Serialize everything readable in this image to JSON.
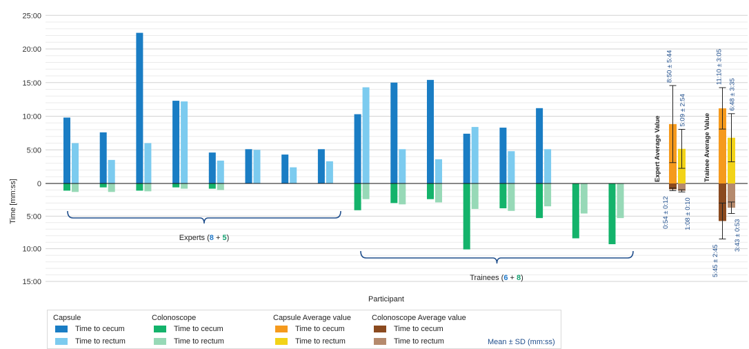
{
  "chart_data": {
    "type": "bar",
    "xlabel": "Participant",
    "ylabel": "Time [mm:ss]",
    "y_ticks_up": [
      "25:00",
      "20:00",
      "15:00",
      "10:00",
      "5:00",
      "0"
    ],
    "y_ticks_down": [
      "5:00",
      "10:00",
      "15:00"
    ],
    "ylim_minutes_up": [
      0,
      25
    ],
    "ylim_minutes_down": [
      0,
      15
    ],
    "units": "minutes",
    "orientation": "capsule times plotted upward from 0, colonoscope times plotted downward from 0",
    "grid": true,
    "participants": [
      {
        "group": "Experts",
        "capsule_cecum": 9.8,
        "capsule_rectum": 6.0,
        "colonoscope_cecum": 1.1,
        "colonoscope_rectum": 1.3
      },
      {
        "group": "Experts",
        "capsule_cecum": 7.6,
        "capsule_rectum": 3.5,
        "colonoscope_cecum": 0.6,
        "colonoscope_rectum": 1.3
      },
      {
        "group": "Experts",
        "capsule_cecum": 22.4,
        "capsule_rectum": 6.0,
        "colonoscope_cecum": 1.1,
        "colonoscope_rectum": 1.2
      },
      {
        "group": "Experts",
        "capsule_cecum": 12.3,
        "capsule_rectum": 12.2,
        "colonoscope_cecum": 0.6,
        "colonoscope_rectum": 0.8
      },
      {
        "group": "Experts",
        "capsule_cecum": 4.6,
        "capsule_rectum": 3.4,
        "colonoscope_cecum": 0.8,
        "colonoscope_rectum": 1.0
      },
      {
        "group": "Experts",
        "capsule_cecum": 5.1,
        "capsule_rectum": 5.0,
        "colonoscope_cecum": null,
        "colonoscope_rectum": null
      },
      {
        "group": "Experts",
        "capsule_cecum": 4.3,
        "capsule_rectum": 2.4,
        "colonoscope_cecum": null,
        "colonoscope_rectum": null
      },
      {
        "group": "Experts",
        "capsule_cecum": 5.1,
        "capsule_rectum": 3.3,
        "colonoscope_cecum": null,
        "colonoscope_rectum": null
      },
      {
        "group": "Trainees",
        "capsule_cecum": 10.3,
        "capsule_rectum": 14.3,
        "colonoscope_cecum": 4.1,
        "colonoscope_rectum": 2.4
      },
      {
        "group": "Trainees",
        "capsule_cecum": 15.0,
        "capsule_rectum": 5.1,
        "colonoscope_cecum": 3.0,
        "colonoscope_rectum": 3.2
      },
      {
        "group": "Trainees",
        "capsule_cecum": 15.4,
        "capsule_rectum": 3.6,
        "colonoscope_cecum": 2.4,
        "colonoscope_rectum": 2.9
      },
      {
        "group": "Trainees",
        "capsule_cecum": 7.4,
        "capsule_rectum": 8.4,
        "colonoscope_cecum": 10.1,
        "colonoscope_rectum": 3.9
      },
      {
        "group": "Trainees",
        "capsule_cecum": 8.3,
        "capsule_rectum": 4.8,
        "colonoscope_cecum": 3.8,
        "colonoscope_rectum": 4.2
      },
      {
        "group": "Trainees",
        "capsule_cecum": 11.2,
        "capsule_rectum": 5.1,
        "colonoscope_cecum": 5.3,
        "colonoscope_rectum": 3.5
      },
      {
        "group": "Trainees",
        "capsule_cecum": null,
        "capsule_rectum": null,
        "colonoscope_cecum": 8.4,
        "colonoscope_rectum": 4.6
      },
      {
        "group": "Trainees",
        "capsule_cecum": null,
        "capsule_rectum": null,
        "colonoscope_cecum": 9.3,
        "colonoscope_rectum": 5.3
      }
    ],
    "groups": [
      {
        "label": "Experts",
        "num1": "8",
        "num2": "5"
      },
      {
        "label": "Trainees",
        "num1": "6",
        "num2": "8"
      }
    ],
    "averages": [
      {
        "title": "Expert Average Value",
        "capsule_cecum": {
          "mean": 8.83,
          "sd": 5.73,
          "text": "8:50 ± 5:44"
        },
        "capsule_rectum": {
          "mean": 5.15,
          "sd": 2.9,
          "text": "5:09 ± 2:54"
        },
        "colonoscope_cecum": {
          "mean": 0.9,
          "sd": 0.2,
          "text": "0:54 ± 0:12"
        },
        "colonoscope_rectum": {
          "mean": 1.13,
          "sd": 0.17,
          "text": "1:08 ± 0:10"
        }
      },
      {
        "title": "Trainee Average Value",
        "capsule_cecum": {
          "mean": 11.17,
          "sd": 3.08,
          "text": "11:10 ± 3:05"
        },
        "capsule_rectum": {
          "mean": 6.8,
          "sd": 3.58,
          "text": "6:48 ± 3:35"
        },
        "colonoscope_cecum": {
          "mean": 5.75,
          "sd": 2.75,
          "text": "5:45 ± 2:45"
        },
        "colonoscope_rectum": {
          "mean": 3.72,
          "sd": 0.88,
          "text": "3:43 ± 0:53"
        }
      }
    ],
    "colors": {
      "capsule_cecum": "#1a7dc4",
      "capsule_rectum": "#7ccbef",
      "colonoscope_cecum": "#14b36b",
      "colonoscope_rectum": "#97d9b7",
      "avg_capsule_cecum": "#f59a1d",
      "avg_capsule_rectum": "#f2d318",
      "avg_colonoscope_cecum": "#8b4a1f",
      "avg_colonoscope_rectum": "#b58a6d",
      "bracket": "#1f4e8c",
      "sd_text": "#1f4e8c"
    }
  },
  "legend": {
    "groups": [
      {
        "title": "Capsule",
        "items": [
          {
            "label": "Time to cecum",
            "color": "#1a7dc4"
          },
          {
            "label": "Time to rectum",
            "color": "#7ccbef"
          }
        ]
      },
      {
        "title": "Colonoscope",
        "items": [
          {
            "label": "Time to cecum",
            "color": "#14b36b"
          },
          {
            "label": "Time to rectum",
            "color": "#97d9b7"
          }
        ]
      },
      {
        "title": "Capsule Average value",
        "items": [
          {
            "label": "Time to cecum",
            "color": "#f59a1d"
          },
          {
            "label": "Time to rectum",
            "color": "#f2d318"
          }
        ]
      },
      {
        "title": "Colonoscope Average value",
        "items": [
          {
            "label": "Time to cecum",
            "color": "#8b4a1f"
          },
          {
            "label": "Time to rectum",
            "color": "#b58a6d"
          }
        ]
      }
    ],
    "note": "Mean ± SD (mm:ss)"
  }
}
